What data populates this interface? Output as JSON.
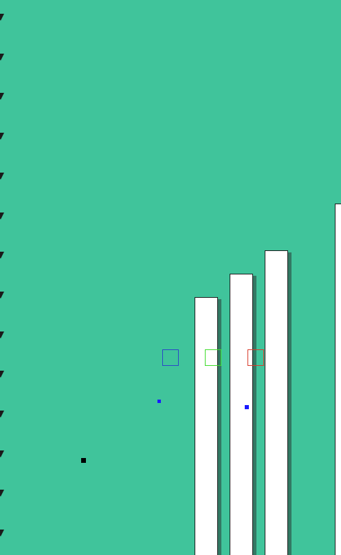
{
  "scene": {
    "background": "#40c49b",
    "edge_markers": {
      "count": 14,
      "color": "#1a1a1a",
      "icon": "edge-tick-icon"
    },
    "pillars": [
      {
        "name": "pillar-1",
        "color": "#ffffff"
      },
      {
        "name": "pillar-2",
        "color": "#ffffff"
      },
      {
        "name": "pillar-3",
        "color": "#ffffff"
      },
      {
        "name": "pillar-4-partial",
        "color": "#ffffff"
      }
    ],
    "slots": [
      {
        "name": "blue-slot",
        "color": "#2b46c8"
      },
      {
        "name": "green-slot",
        "color": "#3ddc2a"
      },
      {
        "name": "red-slot",
        "color": "#d83a2a"
      }
    ],
    "dots": [
      {
        "name": "blue-dot-small",
        "color": "#1a1aff"
      },
      {
        "name": "blue-dot",
        "color": "#1a1aff"
      },
      {
        "name": "black-dot",
        "color": "#000000"
      }
    ]
  }
}
